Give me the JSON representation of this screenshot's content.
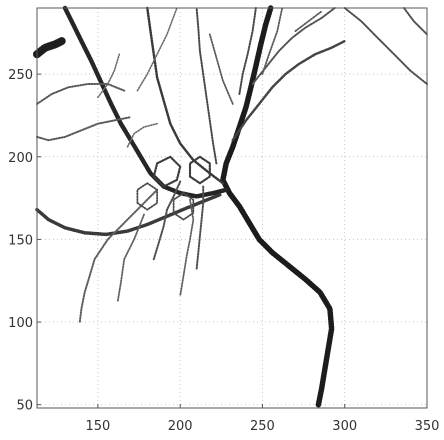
{
  "chart_data": {
    "type": "scatter",
    "title": "",
    "xlabel": "",
    "ylabel": "",
    "xlim": [
      113,
      350
    ],
    "ylim": [
      48,
      290
    ],
    "grid": true,
    "x_ticks": [
      150,
      200,
      250,
      300,
      350
    ],
    "y_ticks": [
      50,
      100,
      150,
      200,
      250
    ],
    "x_tick_labels": [
      "150",
      "200",
      "250",
      "300",
      "350"
    ],
    "y_tick_labels": [
      "50",
      "100",
      "150",
      "200",
      "250"
    ],
    "series": [
      {
        "points": [
          [
            284,
            50
          ],
          [
            286,
            60
          ],
          [
            288,
            72
          ],
          [
            290,
            84
          ],
          [
            292,
            96
          ],
          [
            291,
            108
          ],
          [
            285,
            118
          ],
          [
            276,
            126
          ],
          [
            266,
            134
          ],
          [
            256,
            142
          ],
          [
            248,
            150
          ],
          [
            242,
            160
          ],
          [
            236,
            170
          ],
          [
            230,
            178
          ],
          [
            226,
            186
          ],
          [
            228,
            196
          ],
          [
            232,
            206
          ],
          [
            236,
            218
          ],
          [
            240,
            230
          ],
          [
            243,
            242
          ],
          [
            246,
            255
          ],
          [
            249,
            268
          ],
          [
            252,
            280
          ],
          [
            255,
            290
          ]
        ],
        "color": "#1c1c1c",
        "width": 5.5
      },
      {
        "points": [
          [
            228,
            180
          ],
          [
            220,
            178
          ],
          [
            210,
            176
          ],
          [
            200,
            178
          ],
          [
            190,
            182
          ],
          [
            182,
            190
          ],
          [
            176,
            200
          ],
          [
            170,
            210
          ],
          [
            164,
            220
          ],
          [
            158,
            232
          ],
          [
            152,
            245
          ],
          [
            146,
            258
          ],
          [
            140,
            270
          ],
          [
            134,
            282
          ],
          [
            130,
            290
          ]
        ],
        "color": "#262626",
        "width": 4.5
      },
      {
        "points": [
          [
            226,
            184
          ],
          [
            218,
            190
          ],
          [
            208,
            198
          ],
          [
            200,
            208
          ],
          [
            194,
            220
          ],
          [
            190,
            234
          ],
          [
            186,
            248
          ],
          [
            184,
            262
          ],
          [
            182,
            276
          ],
          [
            180,
            290
          ]
        ],
        "color": "#3a3a3a",
        "width": 2.5
      },
      {
        "points": [
          [
            113,
            168
          ],
          [
            120,
            162
          ],
          [
            130,
            157
          ],
          [
            142,
            154
          ],
          [
            155,
            153
          ],
          [
            168,
            155
          ],
          [
            180,
            159
          ],
          [
            192,
            164
          ],
          [
            204,
            169
          ],
          [
            214,
            173
          ],
          [
            224,
            177
          ]
        ],
        "color": "#3a3a3a",
        "width": 3.5
      },
      {
        "points": [
          [
            113,
            212
          ],
          [
            120,
            210
          ],
          [
            130,
            212
          ],
          [
            140,
            216
          ],
          [
            150,
            220
          ],
          [
            160,
            222
          ],
          [
            170,
            224
          ]
        ],
        "color": "#5a5a5a",
        "width": 2
      },
      {
        "points": [
          [
            113,
            232
          ],
          [
            122,
            238
          ],
          [
            132,
            242
          ],
          [
            144,
            244
          ],
          [
            156,
            244
          ],
          [
            166,
            240
          ]
        ],
        "color": "#5a5a5a",
        "width": 2
      },
      {
        "points": [
          [
            113,
            262
          ],
          [
            118,
            266
          ],
          [
            124,
            268
          ],
          [
            128,
            270
          ]
        ],
        "color": "#1e1e1e",
        "width": 8
      },
      {
        "points": [
          [
            232,
            210
          ],
          [
            240,
            222
          ],
          [
            248,
            232
          ],
          [
            256,
            242
          ],
          [
            264,
            250
          ],
          [
            272,
            256
          ],
          [
            282,
            262
          ],
          [
            292,
            266
          ],
          [
            300,
            270
          ]
        ],
        "color": "#444444",
        "width": 2.5
      },
      {
        "points": [
          [
            244,
            244
          ],
          [
            252,
            254
          ],
          [
            260,
            264
          ],
          [
            268,
            272
          ],
          [
            276,
            278
          ],
          [
            286,
            284
          ],
          [
            294,
            290
          ]
        ],
        "color": "#555555",
        "width": 2
      },
      {
        "points": [
          [
            300,
            290
          ],
          [
            310,
            282
          ],
          [
            320,
            272
          ],
          [
            330,
            262
          ],
          [
            340,
            252
          ],
          [
            350,
            244
          ]
        ],
        "color": "#505050",
        "width": 2
      },
      {
        "points": [
          [
            336,
            290
          ],
          [
            342,
            282
          ],
          [
            350,
            274
          ]
        ],
        "color": "#505050",
        "width": 2
      },
      {
        "points": [
          [
            200,
            185
          ],
          [
            196,
            176
          ],
          [
            192,
            168
          ],
          [
            190,
            158
          ],
          [
            187,
            148
          ],
          [
            184,
            138
          ]
        ],
        "color": "#505050",
        "width": 2
      },
      {
        "points": [
          [
            214,
            182
          ],
          [
            214,
            172
          ],
          [
            213,
            162
          ],
          [
            212,
            152
          ],
          [
            211,
            142
          ],
          [
            210,
            132
          ]
        ],
        "color": "#505050",
        "width": 2
      },
      {
        "points": [
          [
            186,
            180
          ],
          [
            176,
            170
          ],
          [
            166,
            160
          ],
          [
            156,
            150
          ],
          [
            148,
            138
          ],
          [
            145,
            128
          ],
          [
            142,
            118
          ],
          [
            140,
            108
          ],
          [
            139,
            100
          ]
        ],
        "color": "#606060",
        "width": 2
      },
      {
        "points": [
          [
            178,
            165
          ],
          [
            172,
            150
          ],
          [
            166,
            138
          ],
          [
            164,
            124
          ],
          [
            162,
            112
          ]
        ],
        "color": "#606060",
        "width": 1.8
      },
      {
        "points": [
          [
            206,
            174
          ],
          [
            208,
            162
          ],
          [
            206,
            150
          ],
          [
            204,
            140
          ],
          [
            202,
            128
          ],
          [
            200,
            116
          ]
        ],
        "color": "#606060",
        "width": 1.8
      },
      {
        "points": [
          [
            222,
            196
          ],
          [
            220,
            208
          ],
          [
            218,
            222
          ],
          [
            216,
            236
          ],
          [
            214,
            250
          ],
          [
            212,
            264
          ],
          [
            211,
            278
          ],
          [
            210,
            290
          ]
        ],
        "color": "#4a4a4a",
        "width": 2
      },
      {
        "points": [
          [
            236,
            238
          ],
          [
            238,
            250
          ],
          [
            241,
            262
          ],
          [
            244,
            276
          ],
          [
            246,
            290
          ]
        ],
        "color": "#4a4a4a",
        "width": 2
      },
      {
        "points": [
          [
            250,
            250
          ],
          [
            254,
            262
          ],
          [
            259,
            276
          ],
          [
            262,
            290
          ]
        ],
        "color": "#5a5a5a",
        "width": 1.8
      },
      {
        "points": [
          [
            174,
            240
          ],
          [
            180,
            250
          ],
          [
            186,
            262
          ],
          [
            192,
            274
          ],
          [
            198,
            290
          ]
        ],
        "color": "#6a6a6a",
        "width": 1.6
      },
      {
        "points": [
          [
            150,
            236
          ],
          [
            156,
            244
          ],
          [
            160,
            252
          ],
          [
            163,
            262
          ]
        ],
        "color": "#6a6a6a",
        "width": 1.6
      },
      {
        "points": [
          [
            168,
            206
          ],
          [
            172,
            214
          ],
          [
            178,
            218
          ],
          [
            186,
            220
          ]
        ],
        "color": "#6a6a6a",
        "width": 1.6
      },
      {
        "points": [
          [
            184,
            188
          ],
          [
            190,
            182
          ],
          [
            198,
            186
          ],
          [
            200,
            194
          ],
          [
            194,
            200
          ],
          [
            186,
            196
          ],
          [
            184,
            188
          ]
        ],
        "color": "#3c3c3c",
        "width": 2.2
      },
      {
        "points": [
          [
            206,
            188
          ],
          [
            212,
            184
          ],
          [
            218,
            188
          ],
          [
            218,
            196
          ],
          [
            212,
            200
          ],
          [
            206,
            196
          ],
          [
            206,
            188
          ]
        ],
        "color": "#3c3c3c",
        "width": 2.2
      },
      {
        "points": [
          [
            174,
            172
          ],
          [
            180,
            168
          ],
          [
            186,
            172
          ],
          [
            186,
            180
          ],
          [
            180,
            184
          ],
          [
            174,
            180
          ],
          [
            174,
            172
          ]
        ],
        "color": "#4a4a4a",
        "width": 1.8
      },
      {
        "points": [
          [
            196,
            166
          ],
          [
            202,
            162
          ],
          [
            208,
            166
          ],
          [
            208,
            174
          ],
          [
            202,
            178
          ],
          [
            196,
            174
          ],
          [
            196,
            166
          ]
        ],
        "color": "#4a4a4a",
        "width": 1.8
      },
      {
        "points": [
          [
            270,
            276
          ],
          [
            278,
            282
          ],
          [
            286,
            288
          ]
        ],
        "color": "#5a5a5a",
        "width": 1.8
      },
      {
        "points": [
          [
            232,
            232
          ],
          [
            226,
            246
          ],
          [
            222,
            260
          ],
          [
            218,
            274
          ]
        ],
        "color": "#5a5a5a",
        "width": 1.8
      }
    ]
  }
}
